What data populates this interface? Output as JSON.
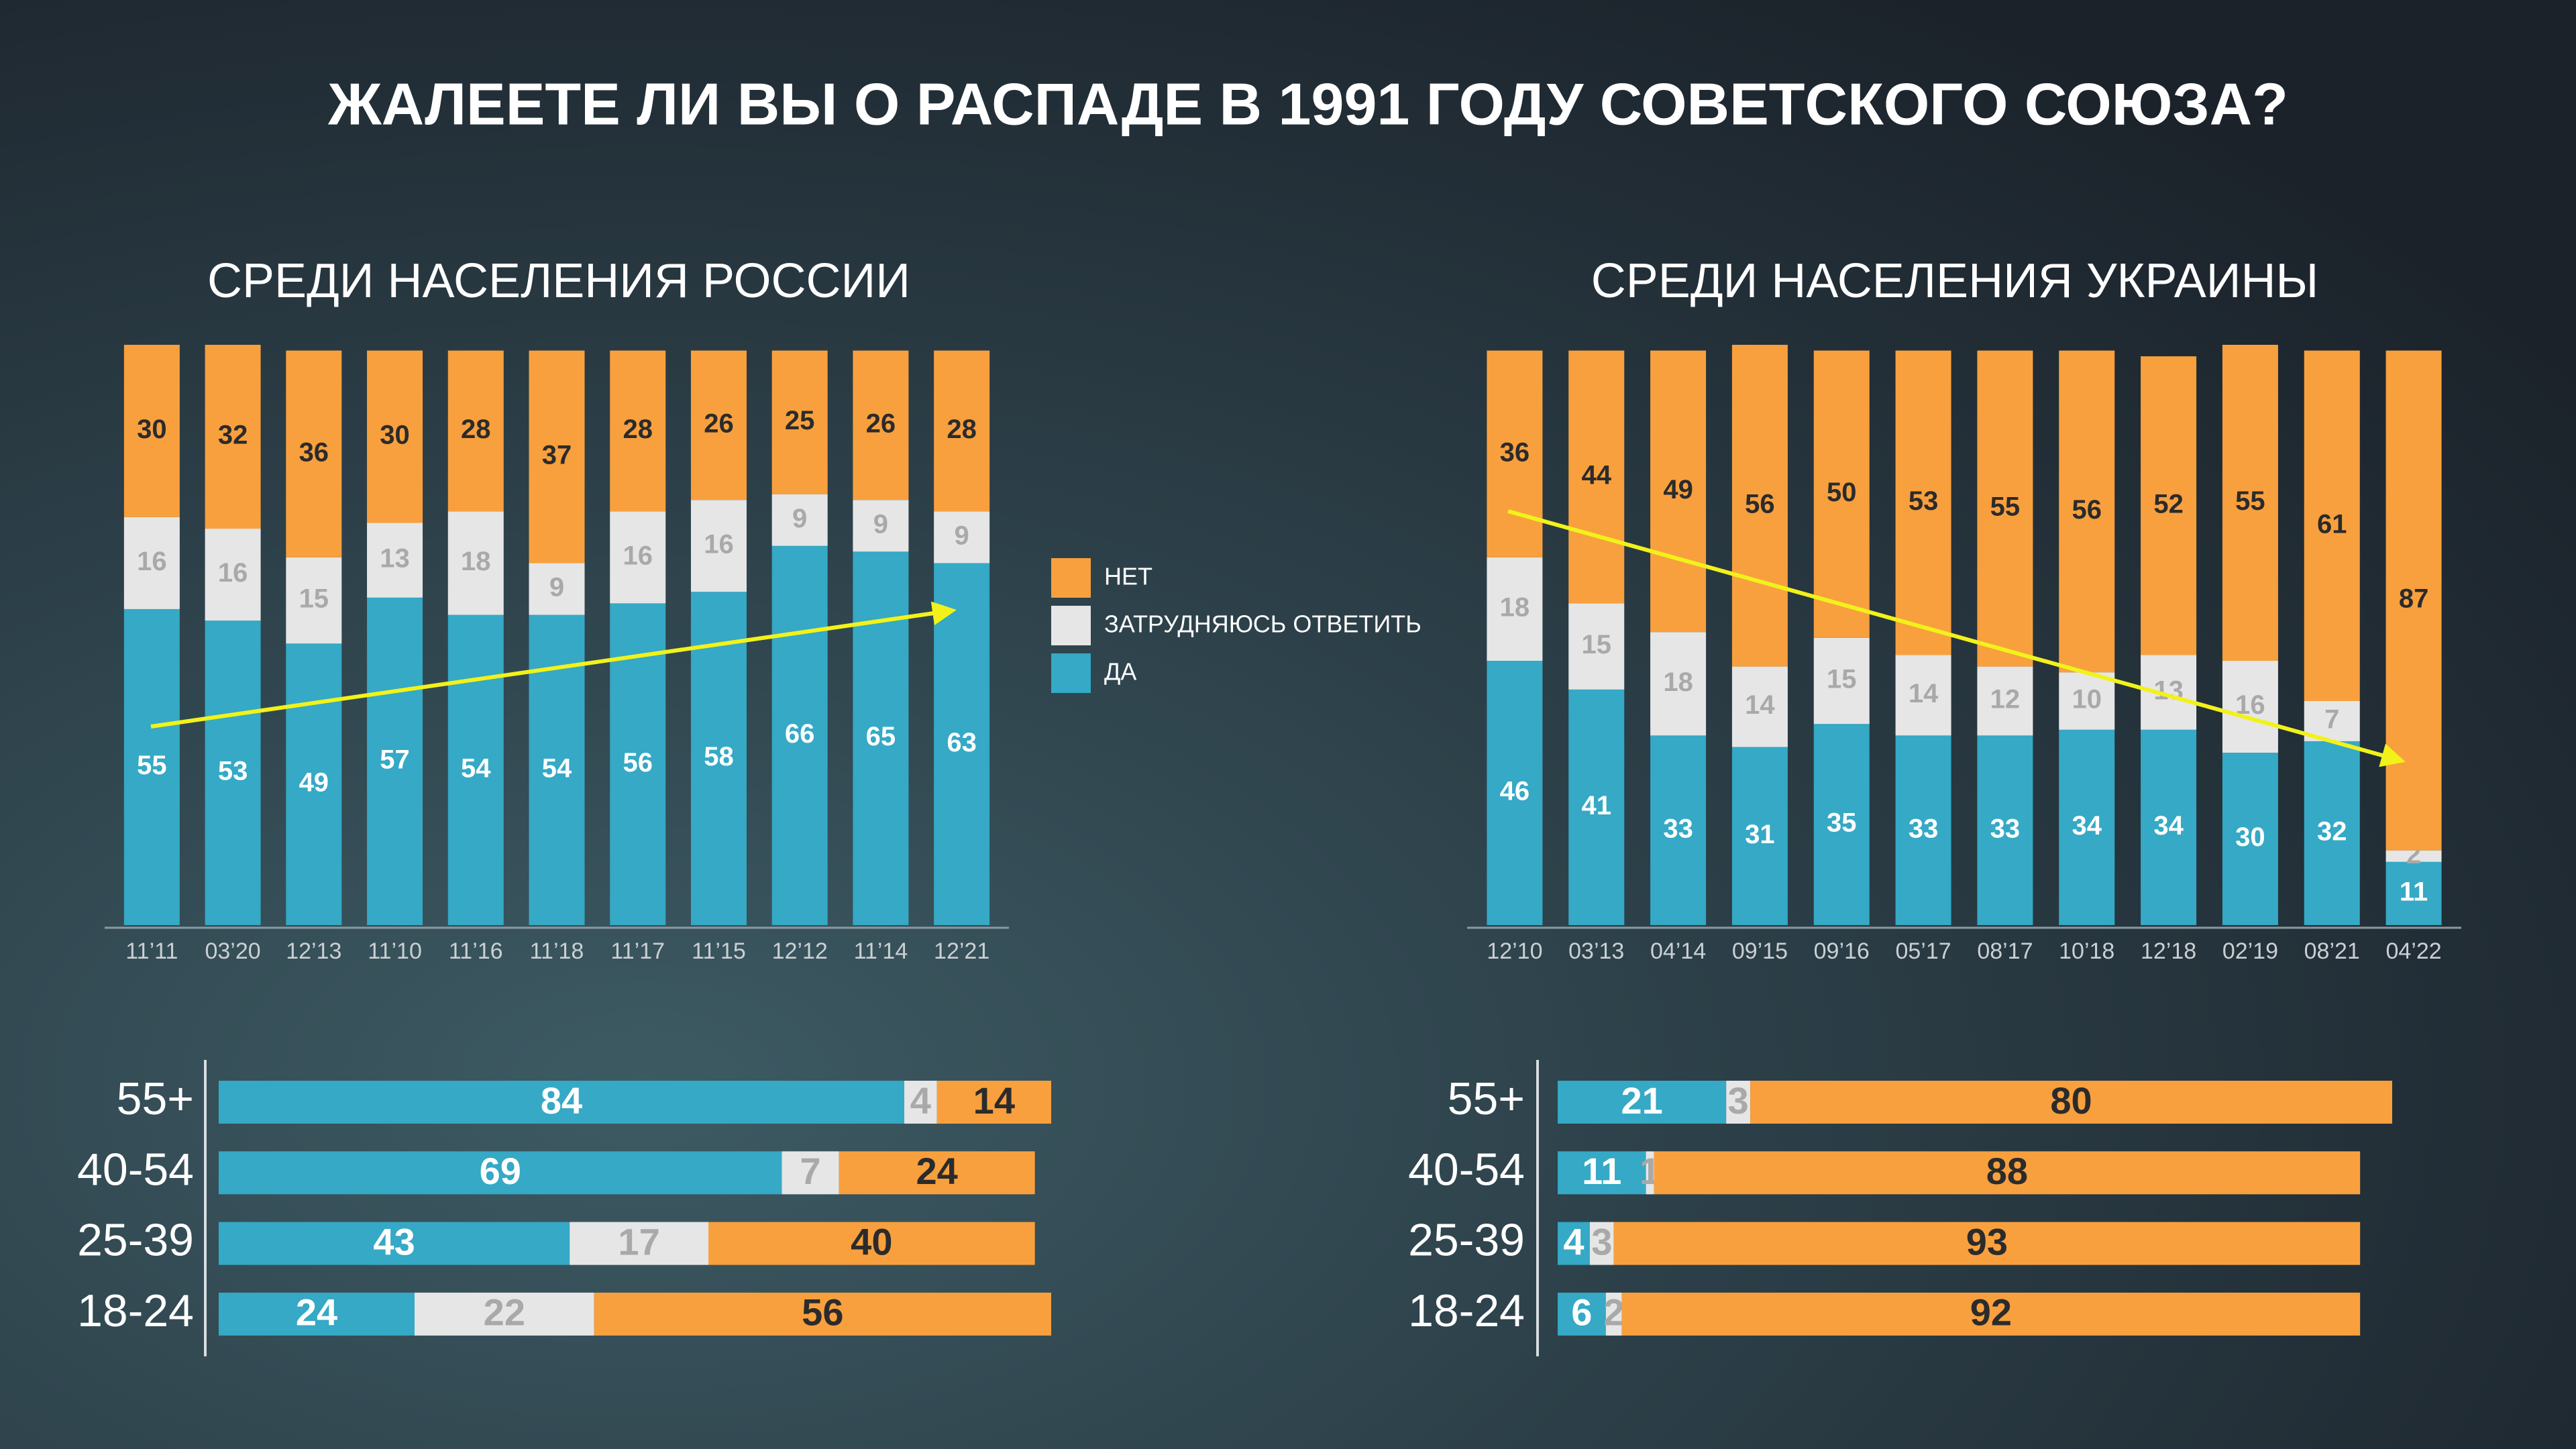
{
  "title": "ЖАЛЕЕТЕ ЛИ ВЫ О РАСПАДЕ В 1991 ГОДУ СОВЕТСКОГО СОЮЗА?",
  "chart_data": [
    {
      "type": "stacked_bar",
      "title": "СРЕДИ НАСЕЛЕНИЯ РОССИИ",
      "legend": true,
      "categories": [
        "11’11",
        "03’20",
        "12’13",
        "11’10",
        "11’16",
        "11’18",
        "11’17",
        "11’15",
        "12’12",
        "11’14",
        "12’21"
      ],
      "series": [
        {
          "name": "ДА",
          "color": "#35a9c5",
          "values": [
            55,
            53,
            49,
            57,
            54,
            54,
            56,
            58,
            66,
            65,
            63
          ]
        },
        {
          "name": "ЗАТРУДНЯЮСЬ ОТВЕТИТЬ",
          "color": "#e6e6e6",
          "values": [
            16,
            16,
            15,
            13,
            18,
            9,
            16,
            16,
            9,
            9,
            9
          ]
        },
        {
          "name": "НЕТ",
          "color": "#f8a03e",
          "values": [
            30,
            32,
            36,
            30,
            28,
            37,
            28,
            26,
            25,
            26,
            28
          ]
        }
      ]
    },
    {
      "type": "stacked_bar",
      "title": "СРЕДИ НАСЕЛЕНИЯ УКРАИНЫ",
      "categories": [
        "12’10",
        "03’13",
        "04’14",
        "09’15",
        "09’16",
        "05’17",
        "08’17",
        "10’18",
        "12’18",
        "02’19",
        "08’21",
        "04’22"
      ],
      "series": [
        {
          "color": "#35a9c5",
          "values": [
            46,
            41,
            33,
            31,
            35,
            33,
            33,
            34,
            34,
            30,
            32,
            11
          ]
        },
        {
          "color": "#e6e6e6",
          "values": [
            18,
            15,
            18,
            14,
            15,
            14,
            12,
            10,
            13,
            16,
            7,
            2
          ]
        },
        {
          "color": "#f8a03e",
          "values": [
            36,
            44,
            49,
            56,
            50,
            53,
            55,
            56,
            52,
            55,
            61,
            87
          ]
        }
      ]
    },
    {
      "type": "stacked_barh",
      "categories": [
        "55+",
        "40-54",
        "25-39",
        "18-24"
      ],
      "series": [
        {
          "color": "#35a9c5",
          "values": [
            84,
            69,
            43,
            24
          ]
        },
        {
          "color": "#e6e6e6",
          "values": [
            4,
            7,
            17,
            22
          ]
        },
        {
          "color": "#f8a03e",
          "values": [
            14,
            24,
            40,
            56
          ]
        }
      ]
    },
    {
      "type": "stacked_barh",
      "categories": [
        "55+",
        "40-54",
        "25-39",
        "18-24"
      ],
      "series": [
        {
          "color": "#35a9c5",
          "values": [
            21,
            11,
            4,
            6
          ]
        },
        {
          "color": "#e6e6e6",
          "values": [
            3,
            1,
            3,
            2
          ]
        },
        {
          "color": "#f8a03e",
          "values": [
            80,
            88,
            93,
            92
          ]
        }
      ]
    }
  ]
}
